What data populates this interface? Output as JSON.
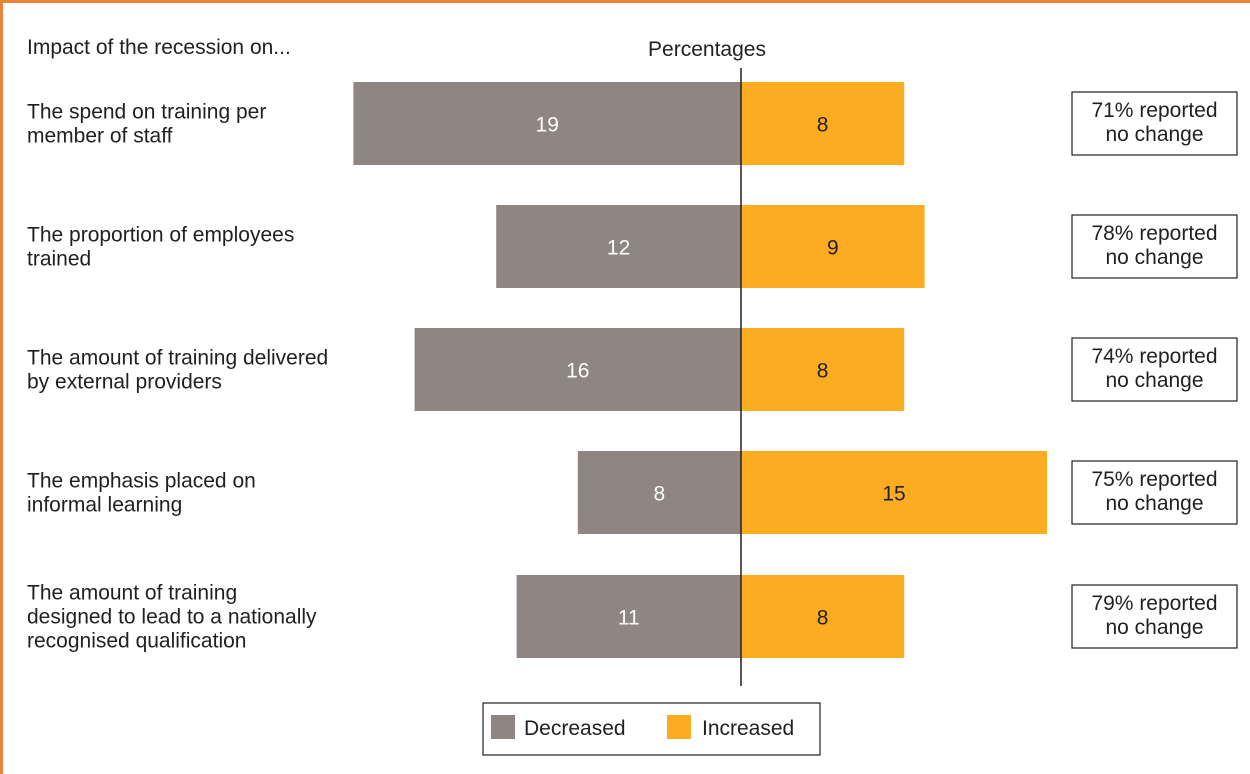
{
  "chart_data": {
    "type": "bar",
    "title": "Impact of the recession on...",
    "xlabel": "Percentages",
    "categories": [
      "The spend on training per member of staff",
      "The proportion of employees trained",
      "The amount of training delivered by external providers",
      "The emphasis placed on informal learning",
      "The amount of training designed to lead to a nationally recognised qualification"
    ],
    "category_lines": [
      [
        "The spend on training per",
        "member of staff"
      ],
      [
        "The proportion of employees",
        "trained"
      ],
      [
        "The amount of training delivered",
        "by external providers"
      ],
      [
        "The emphasis placed on",
        "informal learning"
      ],
      [
        "The amount of training",
        "designed to lead to a nationally",
        "recognised qualification"
      ]
    ],
    "series": [
      {
        "name": "Decreased",
        "values": [
          19,
          12,
          16,
          8,
          11
        ],
        "color": "#8f8683"
      },
      {
        "name": "Increased",
        "values": [
          8,
          9,
          8,
          15,
          8
        ],
        "color": "#fbac20"
      }
    ],
    "no_change_notes": [
      [
        "71% reported",
        "no change"
      ],
      [
        "78% reported",
        "no change"
      ],
      [
        "74% reported",
        "no change"
      ],
      [
        "75% reported",
        "no change"
      ],
      [
        "79% reported",
        "no change"
      ]
    ],
    "legend": {
      "position": "bottom-center"
    },
    "grid": false,
    "colors": {
      "frame": "#e8833a",
      "text": "#231f20",
      "bar_text_decreased": "#ffffff",
      "bar_text_increased": "#231f20"
    }
  }
}
